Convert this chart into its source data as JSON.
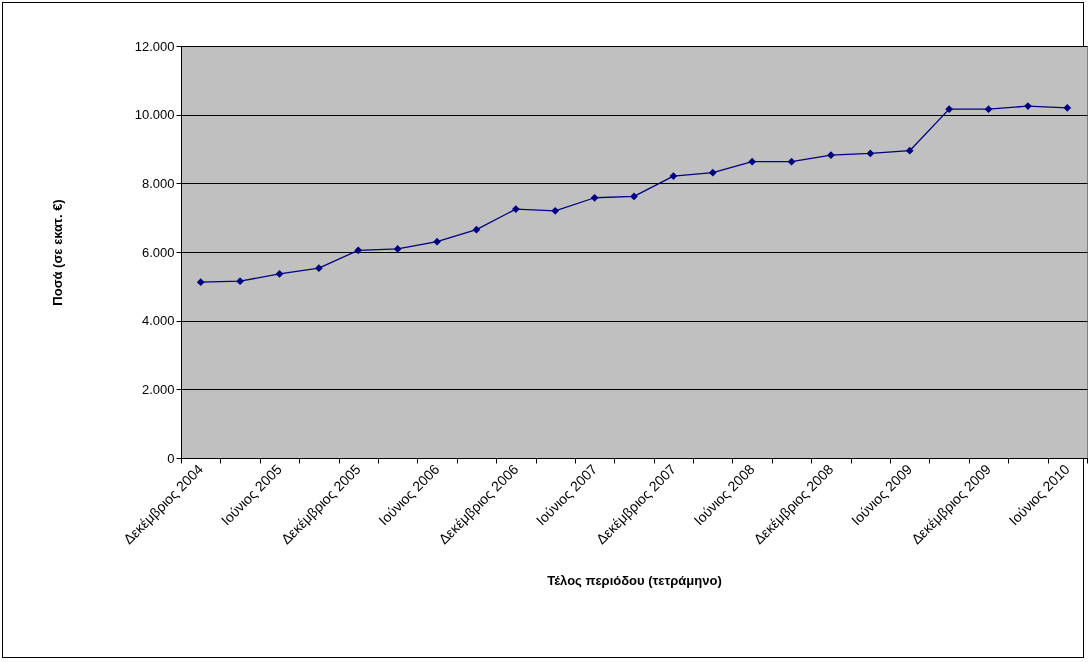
{
  "chart_data": {
    "type": "line",
    "xlabel": "Τέλος περιόδου (τετράμηνο)",
    "ylabel": "Ποσά (σε εκατ. €)",
    "categories": [
      "Δεκέμβριος 2004",
      null,
      "Ιούνιος 2005",
      null,
      "Δεκέμβριος 2005",
      null,
      "Ιούνιος 2006",
      null,
      "Δεκέμβριος 2006",
      null,
      "Ιούνιος 2007",
      null,
      "Δεκέμβριος 2007",
      null,
      "Ιούνιος 2008",
      null,
      "Δεκέμβριος 2008",
      null,
      "Ιούνιος 2009",
      null,
      "Δεκέμβριος 2009",
      null,
      "Ιούνιος 2010"
    ],
    "series": [
      {
        "color": "#000080",
        "values": [
          5120,
          5150,
          5360,
          5530,
          6050,
          6090,
          6300,
          6650,
          7250,
          7200,
          7580,
          7620,
          8210,
          8310,
          8630,
          8630,
          8820,
          8870,
          8950,
          10160,
          10160,
          10250,
          10200
        ]
      }
    ],
    "ylim": [
      0,
      12000
    ],
    "yticks": [
      {
        "value": 0,
        "label": "0"
      },
      {
        "value": 2000,
        "label": "2.000"
      },
      {
        "value": 4000,
        "label": "4.000"
      },
      {
        "value": 6000,
        "label": "6.000"
      },
      {
        "value": 8000,
        "label": "8.000"
      },
      {
        "value": 10000,
        "label": "10.000"
      },
      {
        "value": 12000,
        "label": "12.000"
      }
    ],
    "grid": "y",
    "marker": "diamond",
    "line_style": "solid"
  }
}
